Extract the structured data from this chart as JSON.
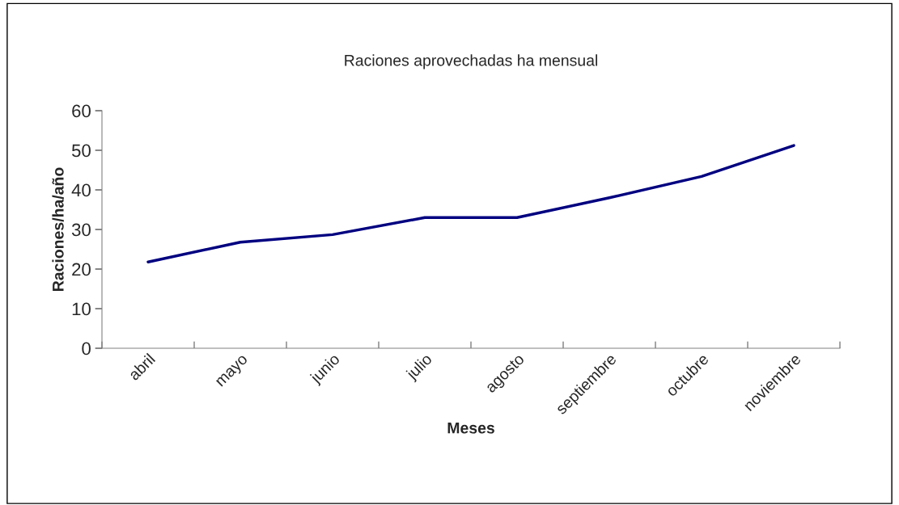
{
  "chart_data": {
    "type": "line",
    "title": "Raciones aprovechadas ha mensual",
    "xlabel": "Meses",
    "ylabel": "Raciones/ha/año",
    "categories": [
      "abril",
      "mayo",
      "junio",
      "julio",
      "agosto",
      "septiembre",
      "octubre",
      "noviembre"
    ],
    "series": [
      {
        "color": "#000080",
        "values": [
          21.8,
          26.8,
          28.7,
          33.0,
          33.0,
          38.0,
          43.4,
          51.2
        ]
      }
    ],
    "ylim": [
      0,
      60
    ],
    "yticks": [
      0,
      10,
      20,
      30,
      40,
      50,
      60
    ],
    "grid": false,
    "legend": false,
    "marker": "none",
    "line_style": "solid"
  }
}
